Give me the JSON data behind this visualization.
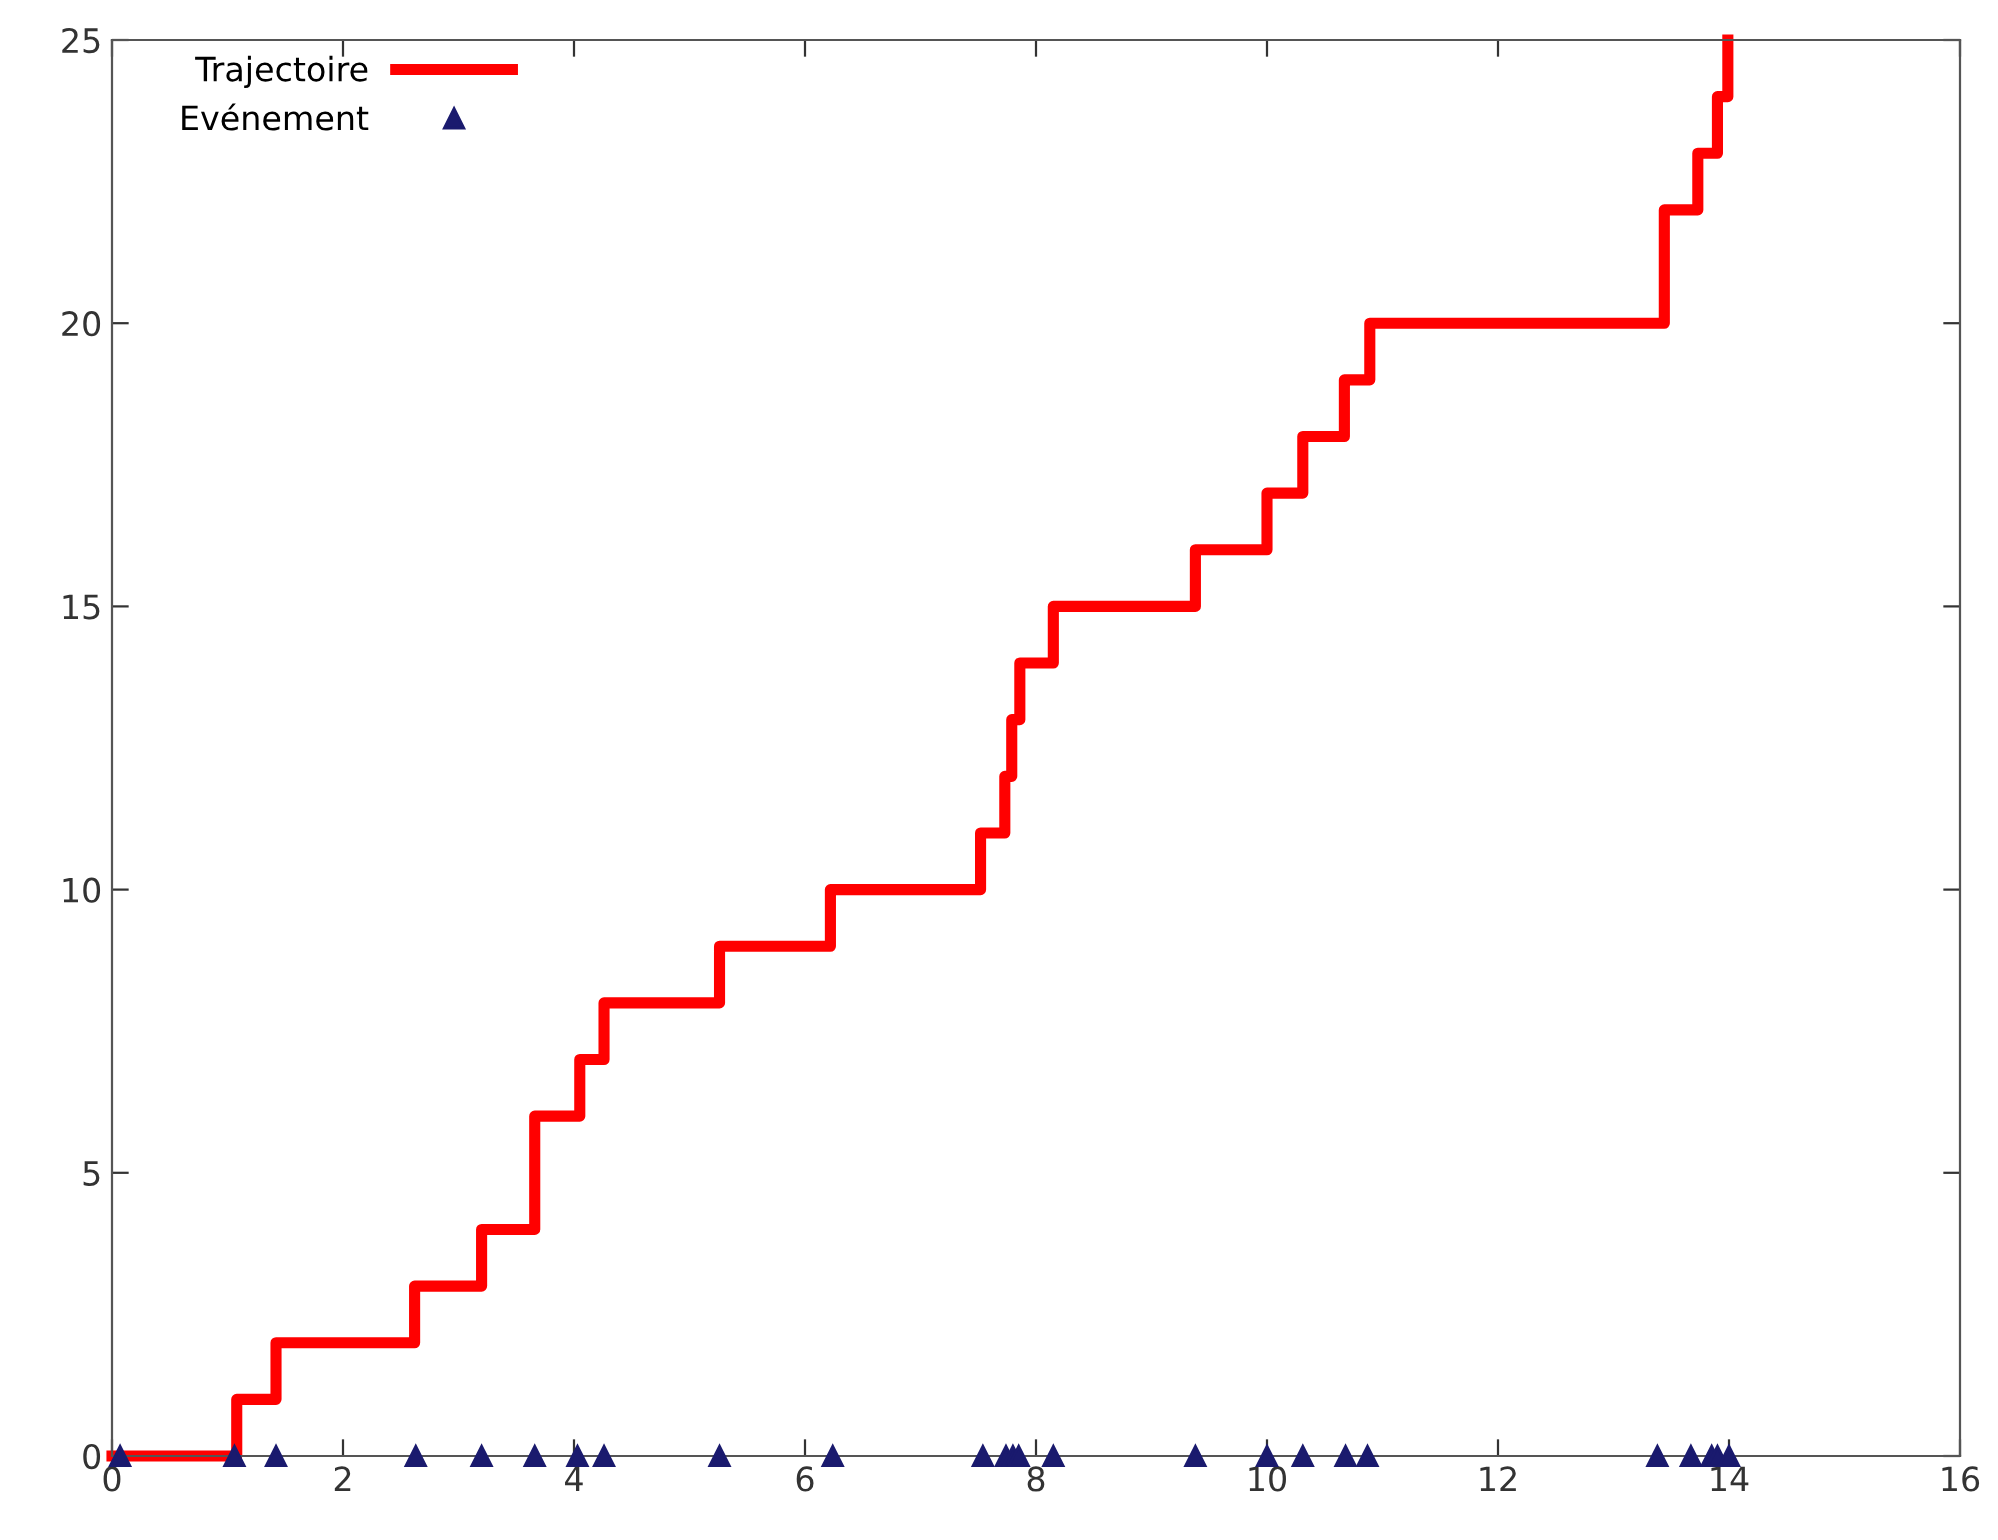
{
  "chart_data": {
    "type": "step",
    "xlim": [
      0,
      16
    ],
    "xticks": [
      0,
      2,
      4,
      6,
      8,
      10,
      12,
      14,
      16
    ],
    "ylim": [
      0,
      25
    ],
    "yticks": [
      0,
      5,
      10,
      15,
      20,
      25
    ],
    "legend": "top left",
    "grid": false,
    "series": [
      {
        "name": "Trajectoire",
        "color": "#ff0000",
        "x": [
          0,
          1.08,
          1.42,
          2.62,
          3.2,
          3.66,
          4.05,
          4.26,
          5.26,
          6.22,
          7.52,
          7.73,
          7.79,
          7.86,
          8.15,
          9.38,
          10.0,
          10.31,
          10.67,
          10.89,
          13.44,
          13.73,
          13.9,
          13.99
        ],
        "values": [
          0,
          1,
          2,
          3,
          4,
          6,
          7,
          8,
          9,
          10,
          11,
          12,
          13,
          14,
          15,
          16,
          17,
          18,
          19,
          20,
          22,
          23,
          24,
          25
        ]
      },
      {
        "name": "Evénement",
        "type": "scatter",
        "color": "#1a1a6e",
        "marker": "triangle",
        "x": [
          0.07,
          1.06,
          1.42,
          2.63,
          3.2,
          3.66,
          4.03,
          4.26,
          5.26,
          6.24,
          7.54,
          7.74,
          7.8,
          7.85,
          8.15,
          9.38,
          10.0,
          10.31,
          10.68,
          10.87,
          13.38,
          13.67,
          13.85,
          13.9,
          14.0
        ],
        "values": [
          0,
          0,
          0,
          0,
          0,
          0,
          0,
          0,
          0,
          0,
          0,
          0,
          0,
          0,
          0,
          0,
          0,
          0,
          0,
          0,
          0,
          0,
          0,
          0,
          0
        ]
      }
    ]
  }
}
